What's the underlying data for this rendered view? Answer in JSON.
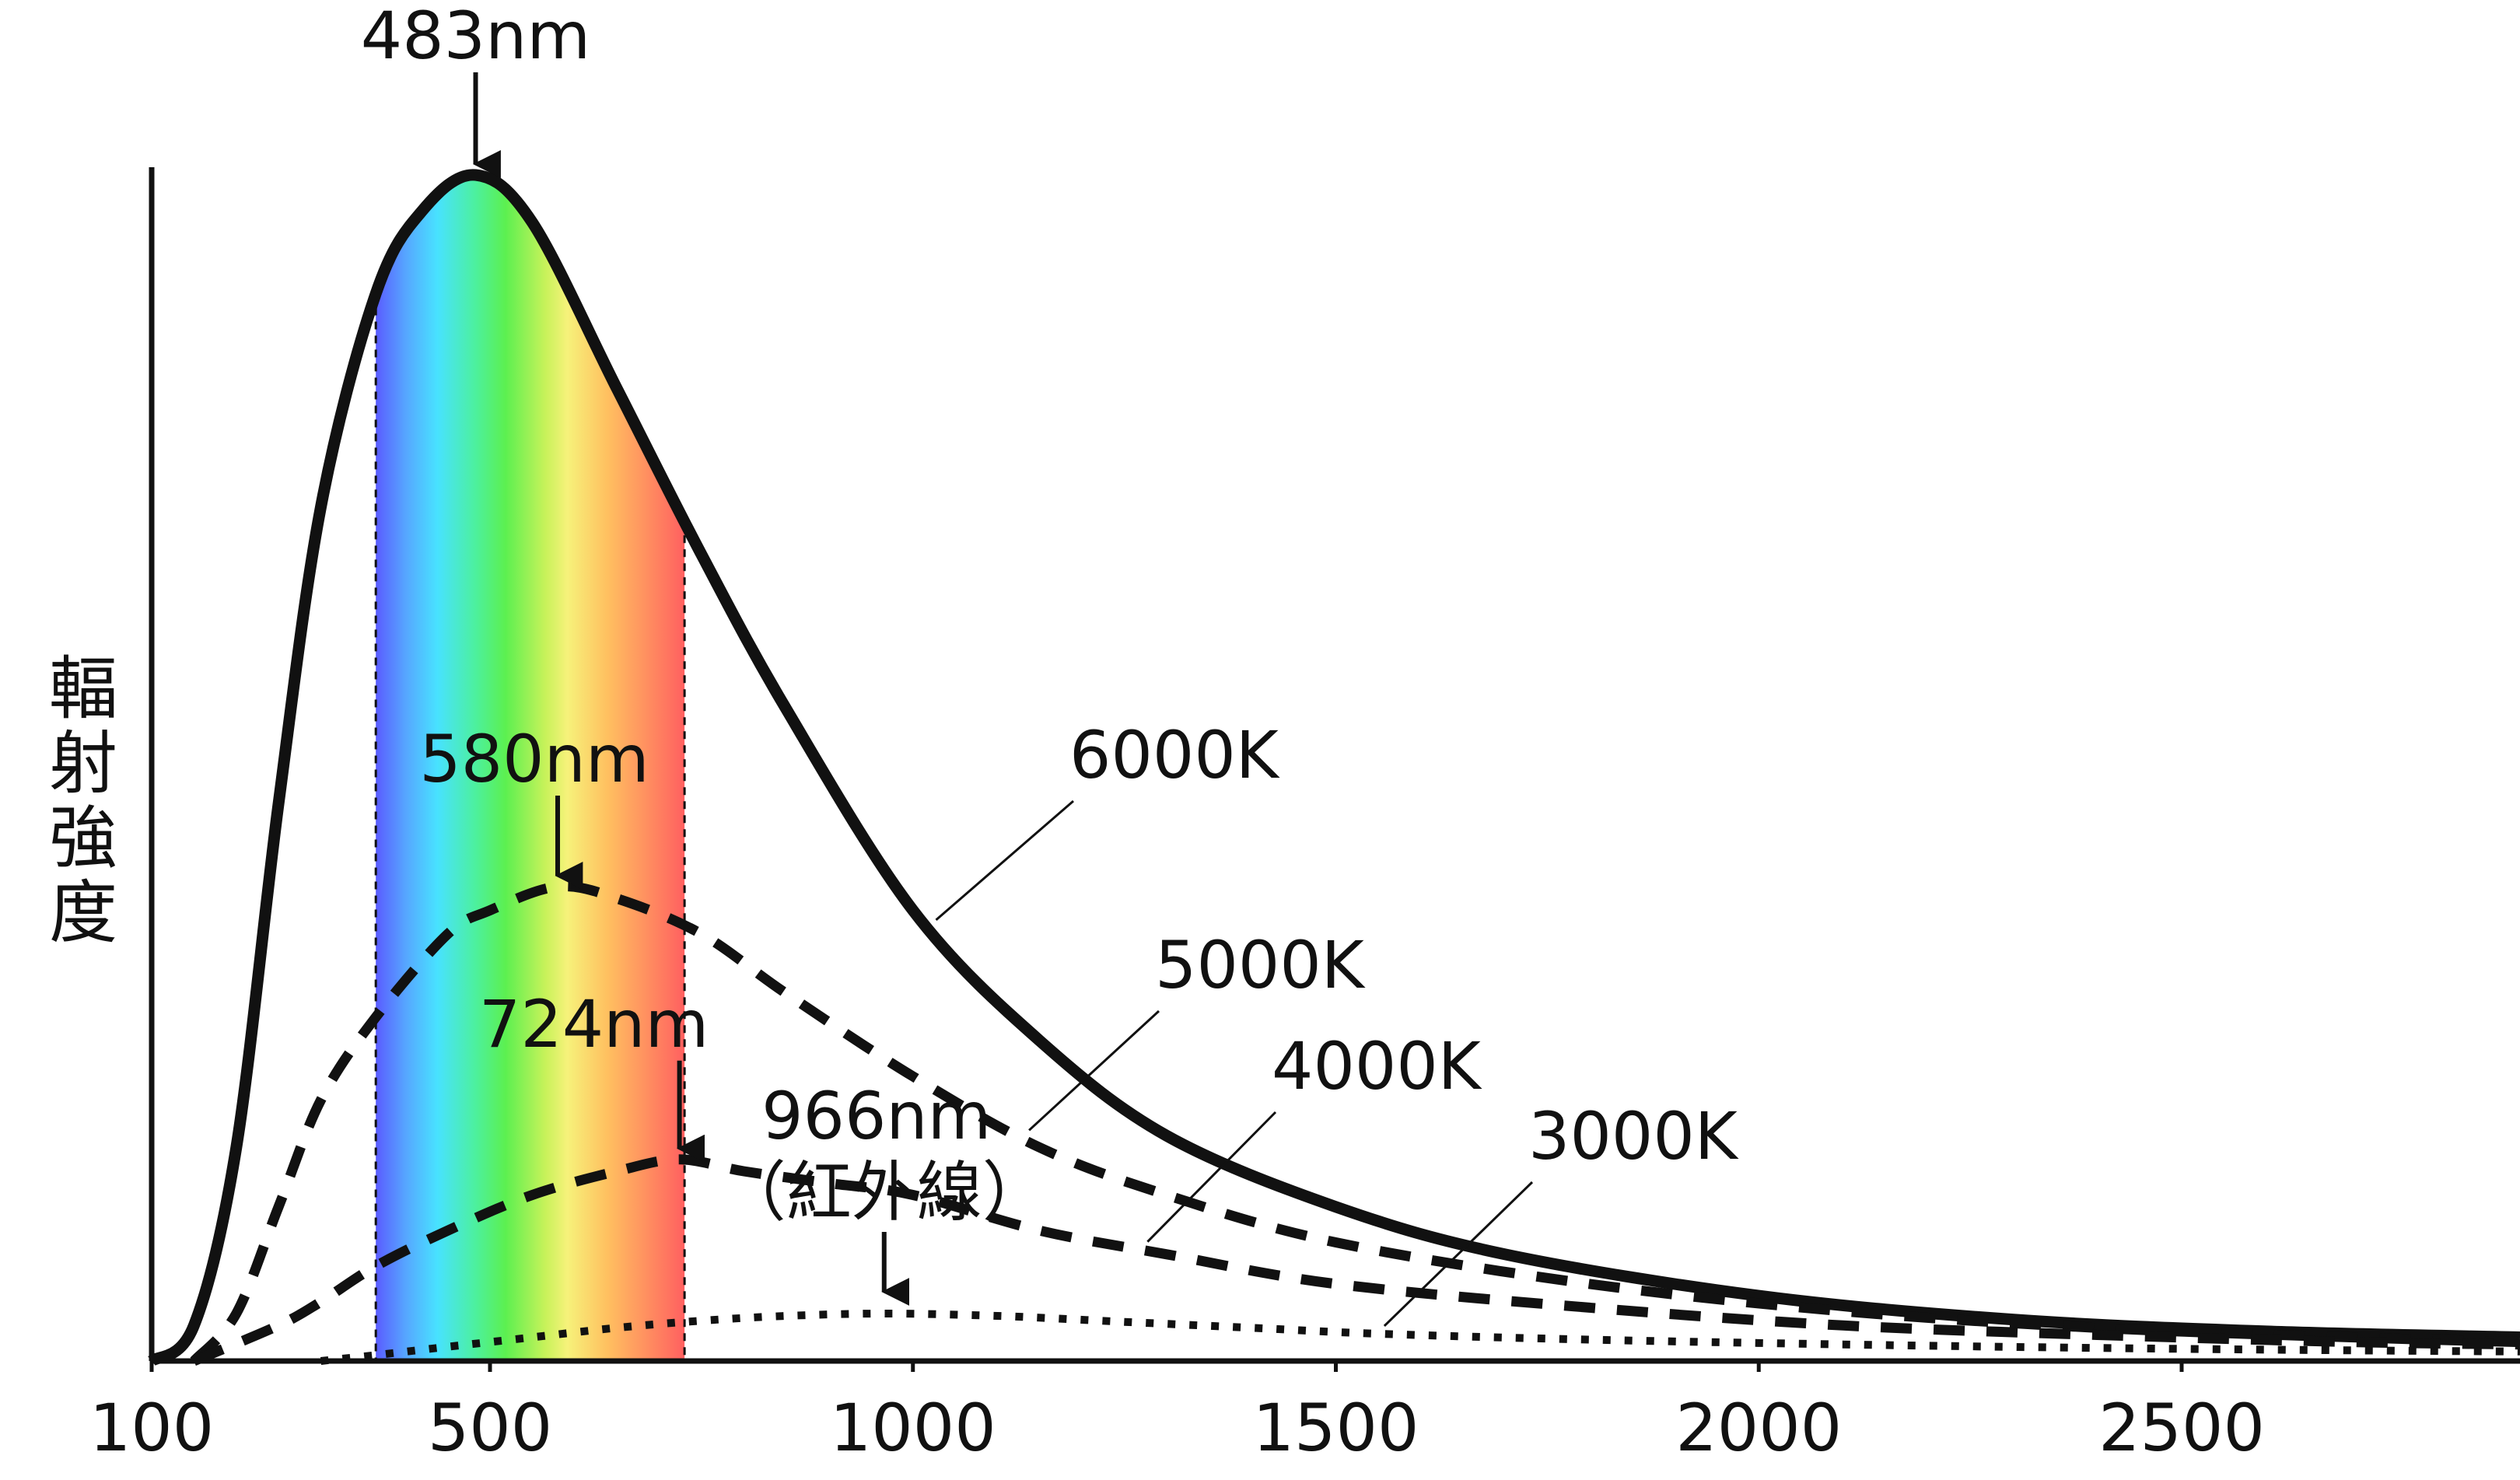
{
  "chart_data": {
    "type": "line",
    "title": "",
    "xlabel": "",
    "ylabel": "輻射強度",
    "xlim": [
      100,
      2900
    ],
    "ylim": [
      0,
      1.0
    ],
    "x_ticks": [
      100,
      500,
      1000,
      1500,
      2000,
      2500
    ],
    "visible_band": {
      "from": 365,
      "to": 730
    },
    "series": [
      {
        "name": "6000K",
        "temperature": 6000,
        "peak_nm": 483,
        "style": "solid",
        "x": [
          100,
          150,
          200,
          250,
          300,
          365,
          420,
          483,
          550,
          650,
          750,
          850,
          1000,
          1150,
          1300,
          1500,
          1700,
          2000,
          2300,
          2600,
          2900
        ],
        "y": [
          0.0,
          0.03,
          0.18,
          0.47,
          0.72,
          0.9,
          0.97,
          1.0,
          0.96,
          0.82,
          0.68,
          0.55,
          0.38,
          0.27,
          0.19,
          0.13,
          0.09,
          0.055,
          0.035,
          0.025,
          0.02
        ]
      },
      {
        "name": "5000K",
        "temperature": 5000,
        "peak_nm": 580,
        "style": "dashed",
        "x": [
          150,
          200,
          250,
          300,
          365,
          450,
          500,
          580,
          650,
          750,
          850,
          1000,
          1150,
          1300,
          1500,
          1800,
          2100,
          2400,
          2700,
          2900
        ],
        "y": [
          0.0,
          0.04,
          0.13,
          0.22,
          0.29,
          0.36,
          0.38,
          0.4,
          0.39,
          0.36,
          0.31,
          0.24,
          0.18,
          0.14,
          0.1,
          0.065,
          0.042,
          0.028,
          0.02,
          0.016
        ]
      },
      {
        "name": "4000K",
        "temperature": 4000,
        "peak_nm": 724,
        "style": "dashed",
        "x": [
          150,
          250,
          300,
          365,
          450,
          550,
          650,
          724,
          800,
          900,
          1000,
          1150,
          1300,
          1500,
          1800,
          2100,
          2400,
          2700,
          2900
        ],
        "y": [
          0.0,
          0.03,
          0.05,
          0.08,
          0.11,
          0.14,
          0.16,
          0.17,
          0.16,
          0.15,
          0.14,
          0.11,
          0.09,
          0.065,
          0.045,
          0.03,
          0.022,
          0.016,
          0.014
        ]
      },
      {
        "name": "3000K",
        "temperature": 3000,
        "peak_nm": 966,
        "style": "dotted",
        "x": [
          300,
          365,
          450,
          550,
          650,
          750,
          850,
          966,
          1100,
          1250,
          1400,
          1550,
          1800,
          2100,
          2400,
          2700,
          2900
        ],
        "y": [
          0.0,
          0.005,
          0.012,
          0.02,
          0.028,
          0.034,
          0.038,
          0.04,
          0.038,
          0.033,
          0.028,
          0.023,
          0.018,
          0.014,
          0.011,
          0.009,
          0.008
        ]
      }
    ],
    "peak_annotations": [
      {
        "label": "483nm",
        "x": 483
      },
      {
        "label": "580nm",
        "x": 580
      },
      {
        "label": "724nm",
        "x": 724
      },
      {
        "label": "966nm",
        "sublabel": "（紅外線）",
        "x": 966
      }
    ],
    "grid": false,
    "legend": "none"
  }
}
